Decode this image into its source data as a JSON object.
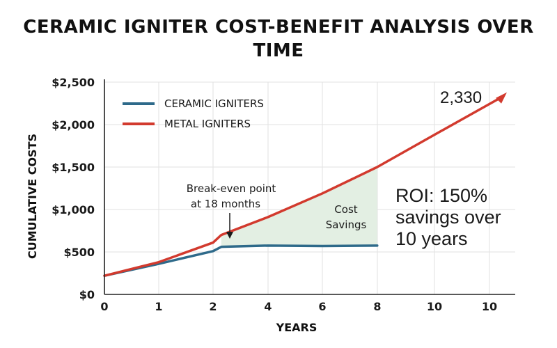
{
  "title_line1": "CERAMIC IGNITER COST-BENEFIT ANALYSIS OVER",
  "title_line2": "TIME",
  "chart_data": {
    "type": "line",
    "title": "CERAMIC IGNITER COST-BENEFIT ANALYSIS OVER TIME",
    "xlabel": "YEARS",
    "ylabel": "CUMULATIVE COSTS",
    "x_tick_labels": [
      "0",
      "1",
      "2",
      "4",
      "6",
      "8",
      "10",
      "10"
    ],
    "y_ticks": [
      0,
      500,
      1000,
      1500,
      2000,
      2500
    ],
    "y_tick_labels": [
      "$0",
      "$500",
      "$1,000",
      "$1,500",
      "$2,000",
      "$2,500"
    ],
    "ylim": [
      0,
      2500
    ],
    "grid": true,
    "legend_position": "top-left",
    "series": [
      {
        "name": "CERAMIC IGNITERS",
        "color": "#2e6a8a",
        "x": [
          0,
          1,
          2,
          2.3,
          4,
          6,
          8
        ],
        "y": [
          220,
          360,
          510,
          560,
          575,
          570,
          575
        ]
      },
      {
        "name": "METAL IGNITERS",
        "color": "#d23a2e",
        "x": [
          0,
          1,
          2,
          2.3,
          4,
          6,
          8,
          10,
          10
        ],
        "y": [
          220,
          380,
          610,
          700,
          910,
          1190,
          1500,
          1880,
          2330
        ]
      }
    ],
    "annotations": {
      "break_even_line1": "Break-even point",
      "break_even_line2": "at 18 months",
      "savings_line1": "Cost",
      "savings_line2": "Savings",
      "roi_line1": "ROI: 150%",
      "roi_line2": "savings over",
      "roi_line3": "10 years",
      "end_value": "2,330"
    },
    "fill_color": "#e3efe3"
  }
}
